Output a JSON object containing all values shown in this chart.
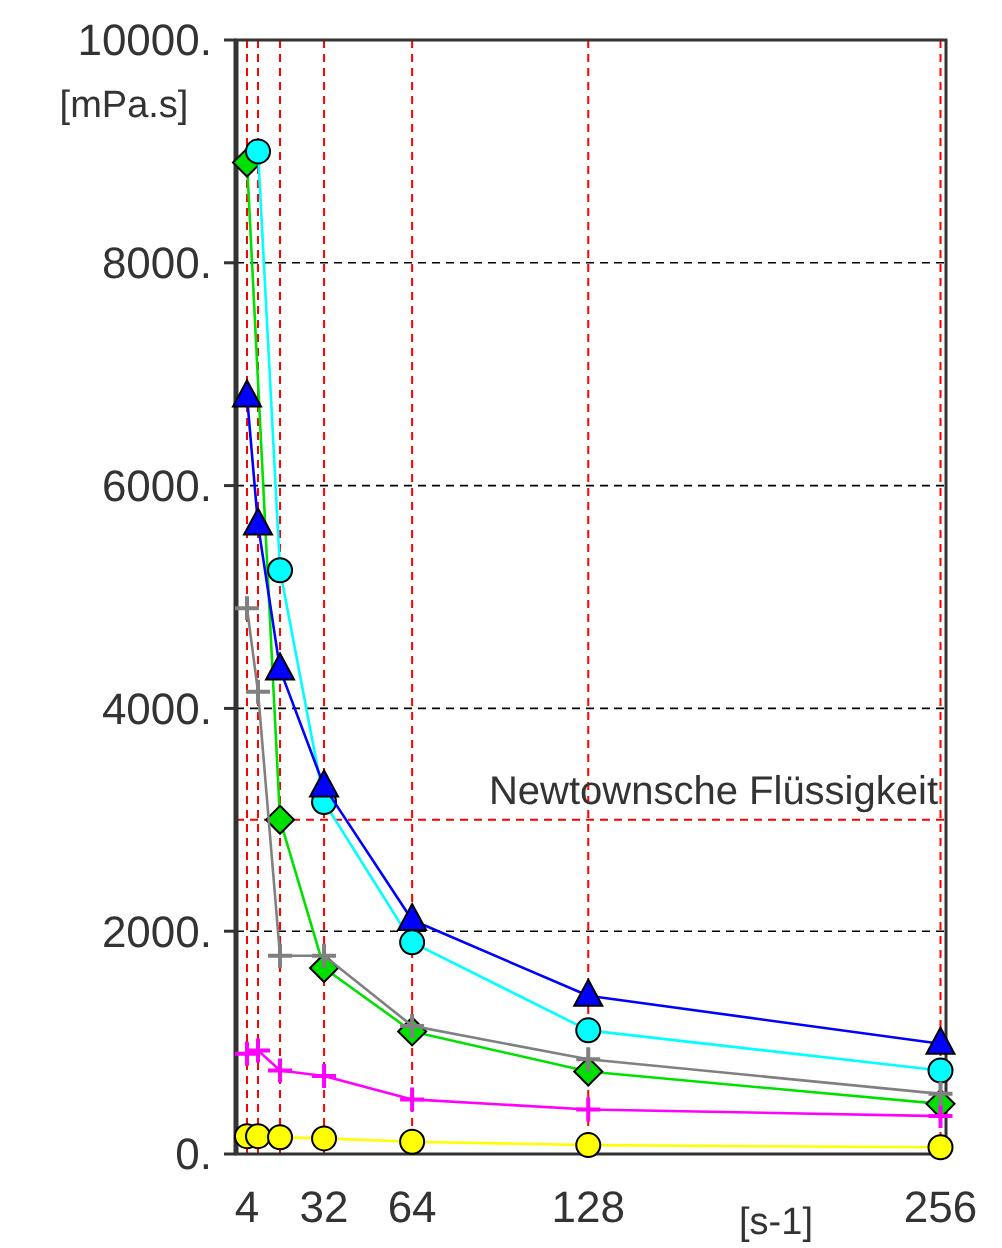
{
  "chart_data": {
    "type": "line",
    "xlabel": "[s-1]",
    "ylabel": "[mPa.s]",
    "x": [
      4,
      8,
      16,
      32,
      64,
      128,
      256
    ],
    "xlim": [
      0,
      258
    ],
    "xticks": [
      4,
      32,
      64,
      128,
      256
    ],
    "ylim": [
      0,
      10000
    ],
    "yticks": [
      {
        "value": 0,
        "label": "0."
      },
      {
        "value": 2000,
        "label": "2000."
      },
      {
        "value": 4000,
        "label": "4000."
      },
      {
        "value": 6000,
        "label": "6000."
      },
      {
        "value": 8000,
        "label": "8000."
      },
      {
        "value": 10000,
        "label": "10000."
      }
    ],
    "grid": "y",
    "series": [
      {
        "color": "#ffff00",
        "marker": "circle",
        "values": [
          160,
          160,
          150,
          140,
          110,
          80,
          60
        ]
      },
      {
        "color": "#00e000",
        "marker": "diamond",
        "values": [
          8900,
          null,
          3000,
          1670,
          1100,
          740,
          450
        ]
      },
      {
        "color": "#00ffff",
        "marker": "circle",
        "values": [
          null,
          9000,
          5240,
          3160,
          1900,
          1110,
          750
        ]
      },
      {
        "color": "#0000ff",
        "marker": "triangle",
        "values": [
          6800,
          5650,
          4350,
          3300,
          2100,
          1420,
          990
        ]
      },
      {
        "color": "#ff00ff",
        "marker": "cross",
        "values": [
          900,
          930,
          750,
          700,
          490,
          400,
          340
        ]
      },
      {
        "color": "#808080",
        "marker": "cross",
        "values": [
          4900,
          4150,
          1780,
          1780,
          1150,
          850,
          540
        ]
      }
    ],
    "ref_lines": [
      {
        "axis": "x",
        "value": 4,
        "color": "#ff0000",
        "line_style": "dashed"
      },
      {
        "axis": "x",
        "value": 8,
        "color": "#ff0000",
        "line_style": "dashed"
      },
      {
        "axis": "x",
        "value": 16,
        "color": "#ff0000",
        "line_style": "dashed"
      },
      {
        "axis": "x",
        "value": 32,
        "color": "#ff0000",
        "line_style": "dashed"
      },
      {
        "axis": "x",
        "value": 64,
        "color": "#ff0000",
        "line_style": "dashed"
      },
      {
        "axis": "x",
        "value": 128,
        "color": "#ff0000",
        "line_style": "dashed"
      },
      {
        "axis": "x",
        "value": 256,
        "color": "#ff0000",
        "line_style": "dashed"
      },
      {
        "axis": "y",
        "value": 3000,
        "label": "Newtownsche Flüssigkeit",
        "color": "#ff0000",
        "line_style": "dashed"
      }
    ]
  }
}
